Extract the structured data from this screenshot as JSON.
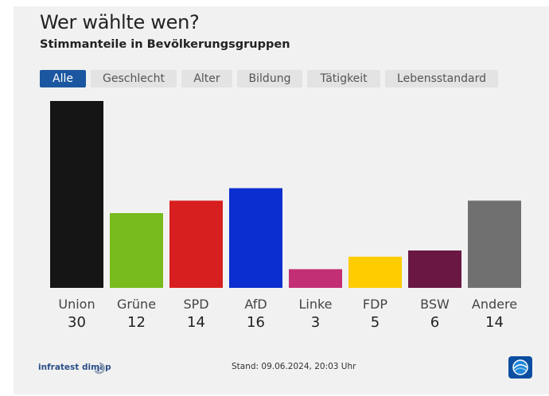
{
  "header": {
    "title": "Wer wählte wen?",
    "subtitle": "Stimmanteile in Bevölkerungsgruppen"
  },
  "tabs": [
    {
      "label": "Alle",
      "active": true
    },
    {
      "label": "Geschlecht",
      "active": false
    },
    {
      "label": "Alter",
      "active": false
    },
    {
      "label": "Bildung",
      "active": false
    },
    {
      "label": "Tätigkeit",
      "active": false
    },
    {
      "label": "Lebensstandard",
      "active": false
    }
  ],
  "chart_data": {
    "type": "bar",
    "title": "",
    "xlabel": "",
    "ylabel": "",
    "categories": [
      "Union",
      "Grüne",
      "SPD",
      "AfD",
      "Linke",
      "FDP",
      "BSW",
      "Andere"
    ],
    "values": [
      30,
      12,
      14,
      16,
      3,
      5,
      6,
      14
    ],
    "colors": [
      "#151515",
      "#77bb1c",
      "#d71f1f",
      "#0a2ecf",
      "#c22f75",
      "#ffcc00",
      "#6b1743",
      "#707070"
    ],
    "ylim": [
      0,
      30
    ],
    "grid": false,
    "legend": "none"
  },
  "footer": {
    "source": "infratest dimap",
    "stand": "Stand: 09.06.2024, 20:03 Uhr",
    "tv_icon": "tagesschau-logo-icon"
  }
}
